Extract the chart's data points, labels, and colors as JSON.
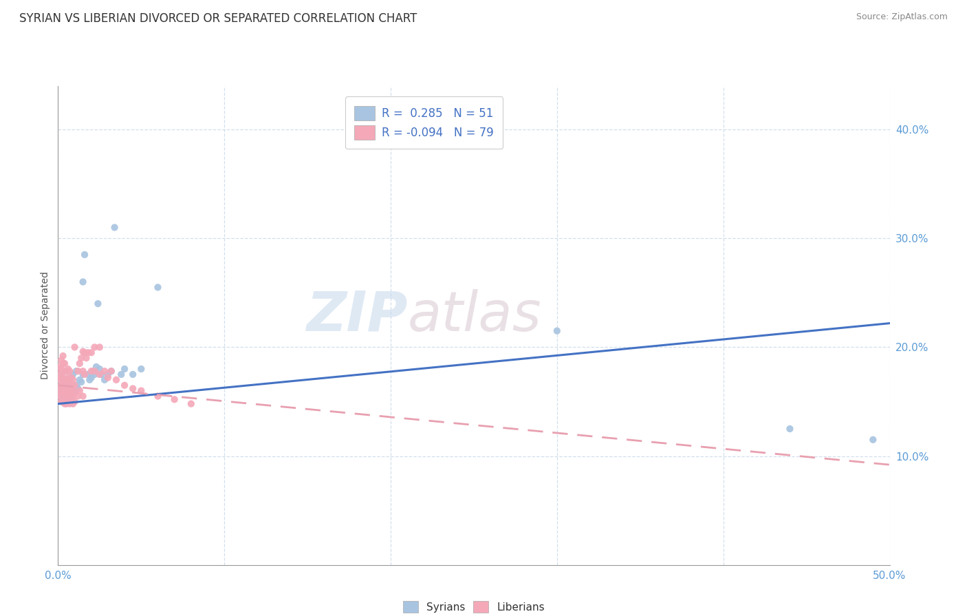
{
  "title": "SYRIAN VS LIBERIAN DIVORCED OR SEPARATED CORRELATION CHART",
  "source": "Source: ZipAtlas.com",
  "ylabel": "Divorced or Separated",
  "xlim": [
    0.0,
    0.5
  ],
  "ylim": [
    0.0,
    0.44
  ],
  "xticks": [
    0.0,
    0.1,
    0.2,
    0.3,
    0.4,
    0.5
  ],
  "yticks": [
    0.1,
    0.2,
    0.3,
    0.4
  ],
  "xticklabels": [
    "0.0%",
    "",
    "",
    "",
    "",
    "50.0%"
  ],
  "yticklabels": [
    "10.0%",
    "20.0%",
    "30.0%",
    "40.0%"
  ],
  "legend_r1": "R =  0.285",
  "legend_n1": "N = 51",
  "legend_r2": "R = -0.094",
  "legend_n2": "N = 79",
  "syrian_color": "#a8c4e0",
  "liberian_color": "#f4a8b8",
  "syrian_line_color": "#4472c4",
  "liberian_line_color": "#e8a0b0",
  "watermark_zip": "ZIP",
  "watermark_atlas": "atlas",
  "syrian_line": [
    0.0,
    0.148,
    0.5,
    0.222
  ],
  "liberian_line": [
    0.0,
    0.165,
    0.5,
    0.092
  ],
  "syrian_points": [
    [
      0.001,
      0.155
    ],
    [
      0.001,
      0.16
    ],
    [
      0.002,
      0.15
    ],
    [
      0.002,
      0.165
    ],
    [
      0.002,
      0.175
    ],
    [
      0.003,
      0.155
    ],
    [
      0.003,
      0.16
    ],
    [
      0.003,
      0.17
    ],
    [
      0.004,
      0.155
    ],
    [
      0.004,
      0.165
    ],
    [
      0.005,
      0.155
    ],
    [
      0.005,
      0.168
    ],
    [
      0.005,
      0.178
    ],
    [
      0.006,
      0.15
    ],
    [
      0.006,
      0.162
    ],
    [
      0.007,
      0.155
    ],
    [
      0.007,
      0.165
    ],
    [
      0.008,
      0.155
    ],
    [
      0.008,
      0.172
    ],
    [
      0.009,
      0.16
    ],
    [
      0.009,
      0.175
    ],
    [
      0.01,
      0.16
    ],
    [
      0.011,
      0.165
    ],
    [
      0.011,
      0.178
    ],
    [
      0.012,
      0.162
    ],
    [
      0.013,
      0.17
    ],
    [
      0.014,
      0.168
    ],
    [
      0.015,
      0.175
    ],
    [
      0.015,
      0.26
    ],
    [
      0.016,
      0.285
    ],
    [
      0.018,
      0.175
    ],
    [
      0.019,
      0.17
    ],
    [
      0.02,
      0.172
    ],
    [
      0.021,
      0.178
    ],
    [
      0.022,
      0.175
    ],
    [
      0.023,
      0.182
    ],
    [
      0.024,
      0.24
    ],
    [
      0.025,
      0.18
    ],
    [
      0.026,
      0.175
    ],
    [
      0.028,
      0.17
    ],
    [
      0.03,
      0.175
    ],
    [
      0.032,
      0.178
    ],
    [
      0.034,
      0.31
    ],
    [
      0.038,
      0.175
    ],
    [
      0.04,
      0.18
    ],
    [
      0.045,
      0.175
    ],
    [
      0.05,
      0.18
    ],
    [
      0.06,
      0.255
    ],
    [
      0.3,
      0.215
    ],
    [
      0.44,
      0.125
    ],
    [
      0.49,
      0.115
    ]
  ],
  "liberian_points": [
    [
      0.001,
      0.155
    ],
    [
      0.001,
      0.162
    ],
    [
      0.001,
      0.17
    ],
    [
      0.001,
      0.175
    ],
    [
      0.001,
      0.182
    ],
    [
      0.002,
      0.15
    ],
    [
      0.002,
      0.158
    ],
    [
      0.002,
      0.165
    ],
    [
      0.002,
      0.172
    ],
    [
      0.002,
      0.18
    ],
    [
      0.002,
      0.188
    ],
    [
      0.003,
      0.15
    ],
    [
      0.003,
      0.158
    ],
    [
      0.003,
      0.165
    ],
    [
      0.003,
      0.172
    ],
    [
      0.003,
      0.178
    ],
    [
      0.003,
      0.185
    ],
    [
      0.003,
      0.192
    ],
    [
      0.004,
      0.148
    ],
    [
      0.004,
      0.156
    ],
    [
      0.004,
      0.163
    ],
    [
      0.004,
      0.17
    ],
    [
      0.004,
      0.178
    ],
    [
      0.004,
      0.185
    ],
    [
      0.005,
      0.148
    ],
    [
      0.005,
      0.155
    ],
    [
      0.005,
      0.162
    ],
    [
      0.005,
      0.17
    ],
    [
      0.005,
      0.178
    ],
    [
      0.006,
      0.15
    ],
    [
      0.006,
      0.158
    ],
    [
      0.006,
      0.165
    ],
    [
      0.006,
      0.172
    ],
    [
      0.006,
      0.18
    ],
    [
      0.007,
      0.148
    ],
    [
      0.007,
      0.155
    ],
    [
      0.007,
      0.162
    ],
    [
      0.007,
      0.17
    ],
    [
      0.007,
      0.178
    ],
    [
      0.008,
      0.15
    ],
    [
      0.008,
      0.158
    ],
    [
      0.008,
      0.165
    ],
    [
      0.008,
      0.172
    ],
    [
      0.009,
      0.148
    ],
    [
      0.009,
      0.155
    ],
    [
      0.009,
      0.162
    ],
    [
      0.009,
      0.17
    ],
    [
      0.01,
      0.15
    ],
    [
      0.01,
      0.158
    ],
    [
      0.01,
      0.165
    ],
    [
      0.01,
      0.2
    ],
    [
      0.012,
      0.155
    ],
    [
      0.012,
      0.178
    ],
    [
      0.013,
      0.16
    ],
    [
      0.013,
      0.185
    ],
    [
      0.014,
      0.19
    ],
    [
      0.015,
      0.155
    ],
    [
      0.015,
      0.178
    ],
    [
      0.015,
      0.196
    ],
    [
      0.016,
      0.175
    ],
    [
      0.016,
      0.195
    ],
    [
      0.017,
      0.19
    ],
    [
      0.018,
      0.195
    ],
    [
      0.02,
      0.178
    ],
    [
      0.02,
      0.195
    ],
    [
      0.022,
      0.178
    ],
    [
      0.022,
      0.2
    ],
    [
      0.025,
      0.175
    ],
    [
      0.025,
      0.2
    ],
    [
      0.028,
      0.178
    ],
    [
      0.03,
      0.172
    ],
    [
      0.032,
      0.178
    ],
    [
      0.035,
      0.17
    ],
    [
      0.04,
      0.165
    ],
    [
      0.045,
      0.162
    ],
    [
      0.05,
      0.16
    ],
    [
      0.06,
      0.155
    ],
    [
      0.07,
      0.152
    ],
    [
      0.08,
      0.148
    ]
  ]
}
